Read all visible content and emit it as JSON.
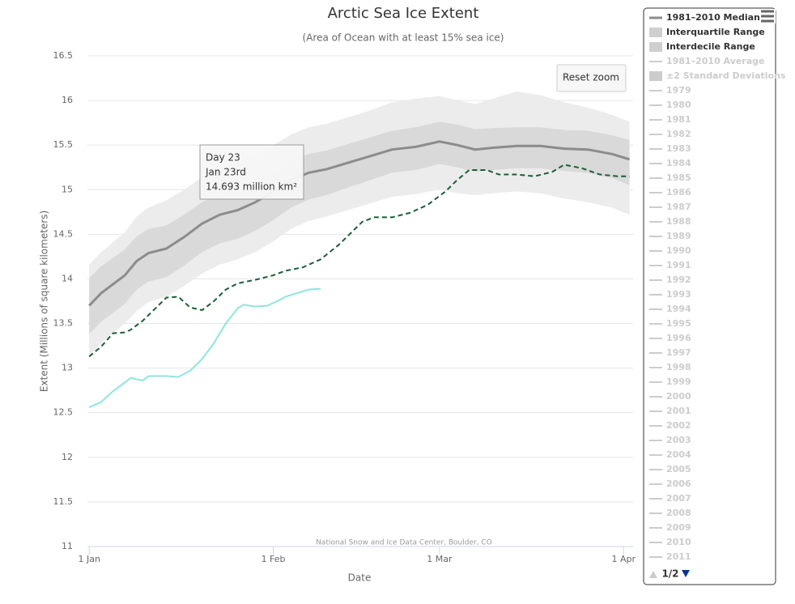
{
  "chart_data": {
    "type": "line",
    "title": "Arctic Sea Ice Extent",
    "subtitle": "(Area of Ocean with at least 15% sea ice)",
    "y_label": "Extent (Millions of square kilometers)",
    "x_label": "Date",
    "credits": "National Snow and Ice Data Center, Boulder, CO",
    "reset_button": "Reset zoom",
    "xlim": [
      0.7,
      92.6
    ],
    "xticks": [
      {
        "value": 1,
        "label": "1 Jan"
      },
      {
        "value": 32,
        "label": "1 Feb"
      },
      {
        "value": 60,
        "label": "1 Mar"
      },
      {
        "value": 91,
        "label": "1 Apr"
      }
    ],
    "ylim": [
      11,
      16.5
    ],
    "yticks": [
      11,
      11.5,
      12,
      12.5,
      13,
      13.5,
      14,
      14.5,
      15,
      15.5,
      16,
      16.5
    ],
    "grid": true,
    "bands": [
      {
        "name": "Interdecile Range",
        "color": "#ececec",
        "x": [
          1,
          3,
          7,
          9,
          11,
          14,
          17,
          20,
          23,
          26,
          29,
          32,
          35,
          38,
          41,
          44,
          48,
          52,
          56,
          60,
          63,
          66,
          69,
          73,
          77,
          81,
          85,
          89,
          92
        ],
        "low": [
          13.13,
          13.28,
          13.5,
          13.64,
          13.74,
          13.8,
          13.92,
          14.06,
          14.16,
          14.22,
          14.3,
          14.42,
          14.56,
          14.65,
          14.7,
          14.76,
          14.84,
          14.92,
          14.95,
          15.0,
          14.96,
          14.94,
          14.96,
          14.98,
          14.96,
          14.9,
          14.86,
          14.8,
          14.72
        ],
        "high": [
          14.16,
          14.3,
          14.52,
          14.7,
          14.8,
          14.88,
          15.0,
          15.14,
          15.24,
          15.3,
          15.38,
          15.5,
          15.62,
          15.7,
          15.74,
          15.8,
          15.88,
          15.98,
          16.02,
          16.05,
          16.0,
          15.96,
          16.02,
          16.1,
          16.06,
          15.98,
          15.92,
          15.84,
          15.76
        ]
      },
      {
        "name": "Interquartile Range",
        "color": "#d9d9d9",
        "x": [
          1,
          3,
          7,
          9,
          11,
          14,
          17,
          20,
          23,
          26,
          29,
          32,
          35,
          38,
          41,
          44,
          48,
          52,
          56,
          60,
          63,
          66,
          69,
          73,
          77,
          81,
          85,
          89,
          92
        ],
        "low": [
          13.38,
          13.52,
          13.72,
          13.88,
          13.97,
          14.02,
          14.15,
          14.3,
          14.4,
          14.45,
          14.54,
          14.66,
          14.8,
          14.89,
          14.94,
          15.01,
          15.1,
          15.19,
          15.22,
          15.29,
          15.25,
          15.2,
          15.22,
          15.24,
          15.24,
          15.21,
          15.19,
          15.13,
          15.05
        ],
        "high": [
          14.01,
          14.14,
          14.33,
          14.48,
          14.56,
          14.6,
          14.72,
          14.86,
          14.95,
          15.0,
          15.08,
          15.19,
          15.32,
          15.4,
          15.44,
          15.5,
          15.58,
          15.66,
          15.7,
          15.76,
          15.73,
          15.68,
          15.69,
          15.7,
          15.7,
          15.67,
          15.66,
          15.61,
          15.56
        ]
      }
    ],
    "series": [
      {
        "name": "1981–2010 Median",
        "color": "#8c8c8c",
        "width": 3,
        "x": [
          1,
          3,
          7,
          9,
          11,
          14,
          17,
          20,
          23,
          26,
          29,
          32,
          35,
          38,
          41,
          44,
          48,
          52,
          56,
          60,
          63,
          66,
          69,
          73,
          77,
          81,
          85,
          89,
          92
        ],
        "values": [
          13.7,
          13.84,
          14.04,
          14.2,
          14.29,
          14.34,
          14.47,
          14.62,
          14.72,
          14.77,
          14.86,
          14.98,
          15.11,
          15.19,
          15.23,
          15.29,
          15.37,
          15.45,
          15.48,
          15.54,
          15.5,
          15.45,
          15.47,
          15.49,
          15.49,
          15.46,
          15.45,
          15.4,
          15.34
        ]
      },
      {
        "color": "#1b5e35",
        "width": 2,
        "dashed": true,
        "x": [
          1,
          3,
          5,
          7,
          8,
          10,
          12,
          14,
          16,
          18,
          20,
          22,
          24,
          26,
          29,
          32,
          34,
          37,
          40,
          43,
          45,
          47,
          49,
          52,
          55,
          58,
          61,
          63,
          65,
          68,
          70,
          73,
          76,
          79,
          81,
          84,
          87,
          90,
          92
        ],
        "values": [
          13.13,
          13.24,
          13.39,
          13.4,
          13.43,
          13.53,
          13.66,
          13.79,
          13.8,
          13.68,
          13.65,
          13.75,
          13.88,
          13.95,
          13.99,
          14.04,
          14.09,
          14.13,
          14.22,
          14.38,
          14.51,
          14.64,
          14.69,
          14.69,
          14.74,
          14.83,
          14.98,
          15.11,
          15.22,
          15.22,
          15.17,
          15.17,
          15.15,
          15.2,
          15.28,
          15.24,
          15.17,
          15.15,
          15.15
        ]
      },
      {
        "color": "#8ee5dc",
        "width": 2,
        "x": [
          1,
          3,
          5,
          7,
          8,
          10,
          11,
          14,
          16,
          18,
          20,
          22,
          24,
          26,
          27,
          29,
          31,
          33,
          34,
          36,
          38,
          40
        ],
        "values": [
          12.56,
          12.62,
          12.74,
          12.84,
          12.89,
          12.86,
          12.91,
          12.91,
          12.9,
          12.97,
          13.1,
          13.28,
          13.5,
          13.67,
          13.71,
          13.69,
          13.7,
          13.76,
          13.8,
          13.84,
          13.88,
          13.89
        ]
      }
    ],
    "legend_order": [
      "series.0",
      "bands.1",
      "bands.0"
    ],
    "hidden_series": [
      {
        "name": "1981–2010 Average"
      },
      {
        "name": "±2 Standard Deviations",
        "symbol": "band"
      },
      {
        "name": "1979"
      },
      {
        "name": "1980"
      },
      {
        "name": "1981"
      },
      {
        "name": "1982"
      },
      {
        "name": "1983"
      },
      {
        "name": "1984"
      },
      {
        "name": "1985"
      },
      {
        "name": "1986"
      },
      {
        "name": "1987"
      },
      {
        "name": "1988"
      },
      {
        "name": "1989"
      },
      {
        "name": "1990"
      },
      {
        "name": "1991"
      },
      {
        "name": "1992"
      },
      {
        "name": "1993"
      },
      {
        "name": "1994"
      },
      {
        "name": "1995"
      },
      {
        "name": "1996"
      },
      {
        "name": "1997"
      },
      {
        "name": "1998"
      },
      {
        "name": "1999"
      },
      {
        "name": "2000"
      },
      {
        "name": "2001"
      },
      {
        "name": "2002"
      },
      {
        "name": "2003"
      },
      {
        "name": "2004"
      },
      {
        "name": "2005"
      },
      {
        "name": "2006"
      },
      {
        "name": "2007"
      },
      {
        "name": "2008"
      },
      {
        "name": "2009"
      },
      {
        "name": "2010"
      },
      {
        "name": "2011"
      }
    ],
    "legend_page": "1/2",
    "tooltip": {
      "lines": [
        "Day 23",
        "Jan 23rd",
        "14.693 million km²"
      ]
    }
  }
}
